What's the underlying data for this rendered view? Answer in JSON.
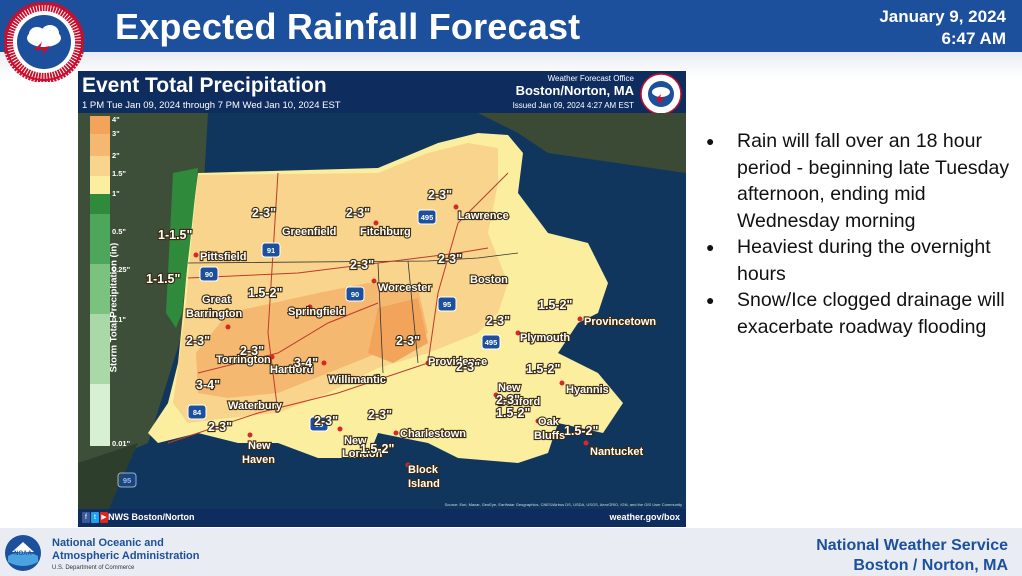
{
  "header": {
    "title": "Expected Rainfall Forecast",
    "date": "January 9, 2024",
    "time": "6:47 AM"
  },
  "map": {
    "title": "Event Total Precipitation",
    "subtitle": "1 PM Tue Jan 09, 2024 through 7 PM Wed Jan 10, 2024 EST",
    "office_line1": "Weather Forecast Office",
    "office_line2": "Boston/Norton, MA",
    "issued": "Issued Jan 09, 2024 4:27 AM EST",
    "footer_left": "NWS Boston/Norton",
    "footer_right": "weather.gov/box",
    "source": "Source: Esri, Maxar, GeoEye, Earthstar Geographics, CNES/Airbus DS, USDA, USGS, AeroGRID, IGN, and the GIS User Community",
    "legend": {
      "title": "Storm Total Precipitation (in)",
      "ticks": [
        "4\"",
        "3\"",
        "2\"",
        "1.5\"",
        "1\"",
        "0.5\"",
        "0.25\"",
        "0.1\"",
        "0.01\""
      ]
    },
    "cities": [
      "Lawrence",
      "Greenfield",
      "Fitchburg",
      "Pittsfield",
      "Worcester",
      "Boston",
      "Great",
      "Barrington",
      "Springfield",
      "Provincetown",
      "Plymouth",
      "Torrington",
      "Hartford",
      "Willimantic",
      "Providence",
      "Hyannis",
      "New",
      "Bedford",
      "Waterbury",
      "Charlestown",
      "Oak",
      "Bluffs",
      "New",
      "Haven",
      "New",
      "London",
      "Nantucket",
      "Block",
      "Island"
    ],
    "amounts": [
      "2-3\"",
      "2-3\"",
      "2-3\"",
      "1-1.5\"",
      "1-1.5\"",
      "2-3\"",
      "2-3\"",
      "1.5-2\"",
      "2-3\"",
      "1.5-2\"",
      "2-3\"",
      "2-3\"",
      "2-3\"",
      "3-4\"",
      "2-3\"",
      "1.5-2\"",
      "2-3\"",
      "3-4\"",
      "2-3\"",
      "2-3\"",
      "2-3\"",
      "1.5-2\"",
      "1.5-2\"",
      "1.5-2\""
    ],
    "highways": [
      "495",
      "91",
      "90",
      "90",
      "95",
      "495",
      "84",
      "95",
      "95"
    ]
  },
  "bullets": [
    "Rain will fall over an 18 hour period - beginning late Tuesday afternoon, ending mid Wednesday morning",
    "Heaviest during the overnight hours",
    "Snow/Ice clogged drainage will exacerbate roadway flooding"
  ],
  "footer": {
    "noaa_line1": "National Oceanic and",
    "noaa_line2": "Atmospheric Administration",
    "noaa_dept": "U.S. Department of Commerce",
    "nws_line1": "National Weather Service",
    "nws_line2": "Boston / Norton, MA"
  },
  "colors": {
    "header_blue": "#1c4f9c",
    "rain_4_plus": "#f2a55a",
    "rain_3_4": "#f5b870",
    "rain_2_3": "#f8d48c",
    "rain_1_5_2": "#fbee9f",
    "rain_1_1_5": "#2f8a3c"
  }
}
